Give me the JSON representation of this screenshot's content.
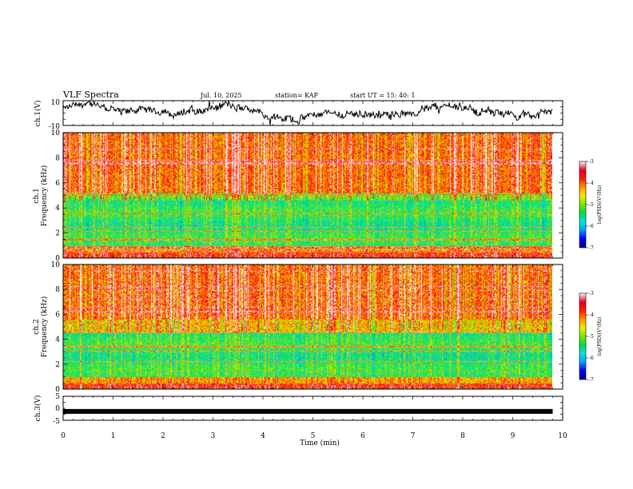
{
  "header": {
    "title": "VLF Spectra",
    "date": "Jul. 10, 2025",
    "station": "station= KAP",
    "start": "start UT =  15: 40: 1"
  },
  "chart_data": [
    {
      "type": "line",
      "name": "ch1-waveform",
      "ylabel": "ch.1(V)",
      "ylim": [
        -10,
        10
      ],
      "yticks": [
        "10",
        "-10"
      ],
      "xlim": [
        0,
        10
      ],
      "x_extent_data": [
        0,
        9.8
      ]
    },
    {
      "type": "heatmap",
      "name": "ch1-spectrogram",
      "ylabel_top": "ch.1",
      "ylabel": "Frequency (kHz)",
      "ylim": [
        0,
        10
      ],
      "yticks": [
        "0",
        "2",
        "4",
        "6",
        "8",
        "10"
      ],
      "colorbar": {
        "label": "log(PSD)(V²/Hz)",
        "range": [
          -7,
          -3
        ],
        "ticks": [
          "-3",
          "-4",
          "-5",
          "-6",
          "-7"
        ]
      }
    },
    {
      "type": "heatmap",
      "name": "ch2-spectrogram",
      "ylabel_top": "ch.2",
      "ylabel": "Frequency (kHz)",
      "ylim": [
        0,
        10
      ],
      "yticks": [
        "0",
        "2",
        "4",
        "6",
        "8",
        "10"
      ],
      "colorbar": {
        "label": "log(PSD)(V²/Hz)",
        "range": [
          -7,
          -3
        ],
        "ticks": [
          "-3",
          "-4",
          "-5",
          "-6",
          "-7"
        ]
      }
    },
    {
      "type": "line",
      "name": "ch3-waveform",
      "ylabel": "ch.3(V)",
      "ylim": [
        -5,
        5
      ],
      "yticks": [
        "5",
        "0",
        "-5"
      ],
      "level": -1.3,
      "xlabel": "Time (min)",
      "xlim": [
        0,
        10
      ],
      "xticks": [
        "0",
        "1",
        "2",
        "3",
        "4",
        "5",
        "6",
        "7",
        "8",
        "9",
        "10"
      ]
    }
  ],
  "colors": {
    "ink": "#000000",
    "bg": "#ffffff"
  }
}
